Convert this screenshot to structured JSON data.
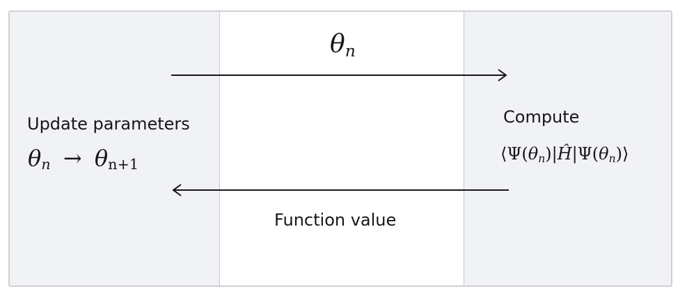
{
  "top_arrow": {
    "label_symbol": "θ",
    "label_subscript": "n"
  },
  "bottom_arrow": {
    "label": "Function value"
  },
  "left_panel": {
    "title": "Update parameters",
    "formula": {
      "lhs_symbol": "θ",
      "lhs_subscript": "n",
      "arrow": "→",
      "rhs_symbol": "θ",
      "rhs_subscript": "n+1"
    }
  },
  "right_panel": {
    "title": "Compute",
    "formula": {
      "open": "⟨Ψ(",
      "theta1": "θ",
      "sub1": "n",
      "mid_close": ")|",
      "hamiltonian": "Ĥ",
      "mid_open": "|Ψ(",
      "theta2": "θ",
      "sub2": "n",
      "close": ")⟩"
    }
  },
  "colors": {
    "side_panel_bg": "#f1f2f6",
    "frame_border": "#d0d0d4",
    "arrow": "#161616"
  }
}
